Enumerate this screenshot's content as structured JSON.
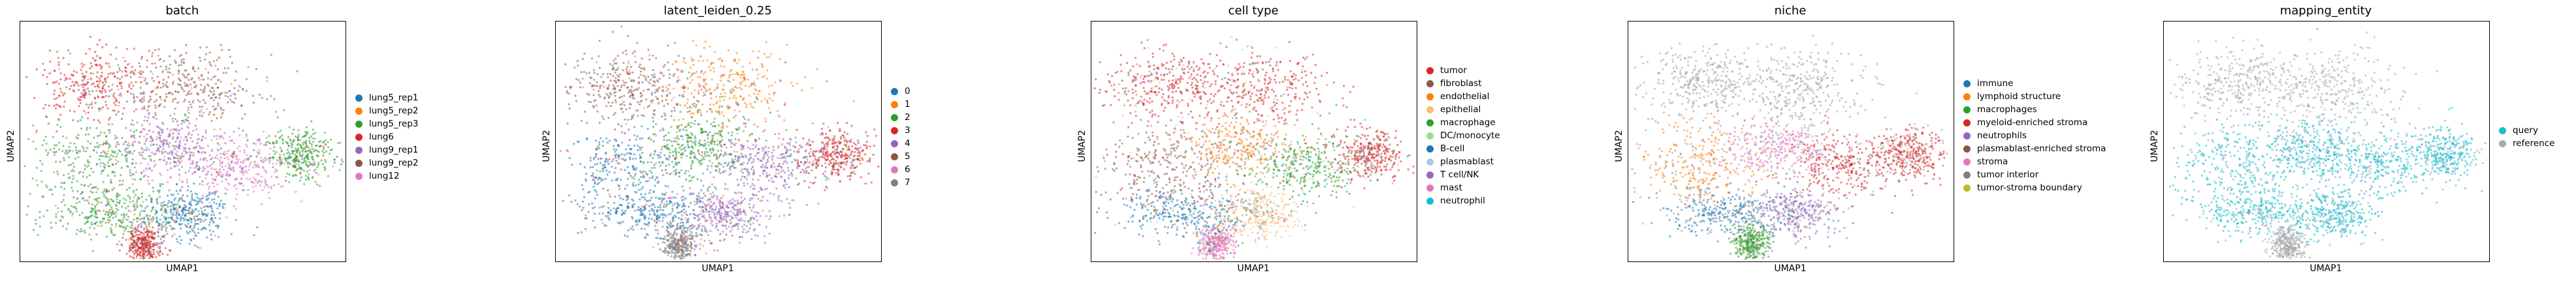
{
  "chart_data": [
    {
      "type": "scatter",
      "title": "batch",
      "xlabel": "UMAP1",
      "ylabel": "UMAP2",
      "legend_placement": "right",
      "categories": [
        "lung5_rep1",
        "lung5_rep2",
        "lung5_rep3",
        "lung6",
        "lung9_rep1",
        "lung9_rep2",
        "lung12"
      ],
      "colors": [
        "#1f77b4",
        "#ff7f0e",
        "#2ca02c",
        "#d62728",
        "#9467bd",
        "#8c564b",
        "#e377c2"
      ]
    },
    {
      "type": "scatter",
      "title": "latent_leiden_0.25",
      "xlabel": "UMAP1",
      "ylabel": "UMAP2",
      "legend_placement": "right",
      "categories": [
        "0",
        "1",
        "2",
        "3",
        "4",
        "5",
        "6",
        "7"
      ],
      "colors": [
        "#1f77b4",
        "#ff7f0e",
        "#2ca02c",
        "#d62728",
        "#9467bd",
        "#8c564b",
        "#e377c2",
        "#7f7f7f"
      ]
    },
    {
      "type": "scatter",
      "title": "cell type",
      "xlabel": "UMAP1",
      "ylabel": "UMAP2",
      "legend_placement": "right",
      "categories": [
        "tumor",
        "fibroblast",
        "endothelial",
        "epithelial",
        "macrophage",
        "DC/monocyte",
        "B-cell",
        "plasmablast",
        "T cell/NK",
        "mast",
        "neutrophil"
      ],
      "colors": [
        "#d62728",
        "#8c564b",
        "#ff7f0e",
        "#ffbb78",
        "#2ca02c",
        "#98df8a",
        "#1f77b4",
        "#aec7e8",
        "#9467bd",
        "#e377c2",
        "#17becf"
      ]
    },
    {
      "type": "scatter",
      "title": "niche",
      "xlabel": "UMAP1",
      "ylabel": "UMAP2",
      "legend_placement": "right",
      "categories": [
        "immune",
        "lymphoid structure",
        "macrophages",
        "myeloid-enriched stroma",
        "neutrophils",
        "plasmablast-enriched stroma",
        "stroma",
        "tumor interior",
        "tumor-stroma boundary"
      ],
      "colors": [
        "#1f77b4",
        "#ff7f0e",
        "#2ca02c",
        "#d62728",
        "#9467bd",
        "#8c564b",
        "#e377c2",
        "#7f7f7f",
        "#bcbd22"
      ]
    },
    {
      "type": "scatter",
      "title": "mapping_entity",
      "xlabel": "UMAP1",
      "ylabel": "UMAP2",
      "legend_placement": "right",
      "categories": [
        "query",
        "reference"
      ],
      "colors": [
        "#17becf",
        "#aaaaaa"
      ]
    }
  ]
}
